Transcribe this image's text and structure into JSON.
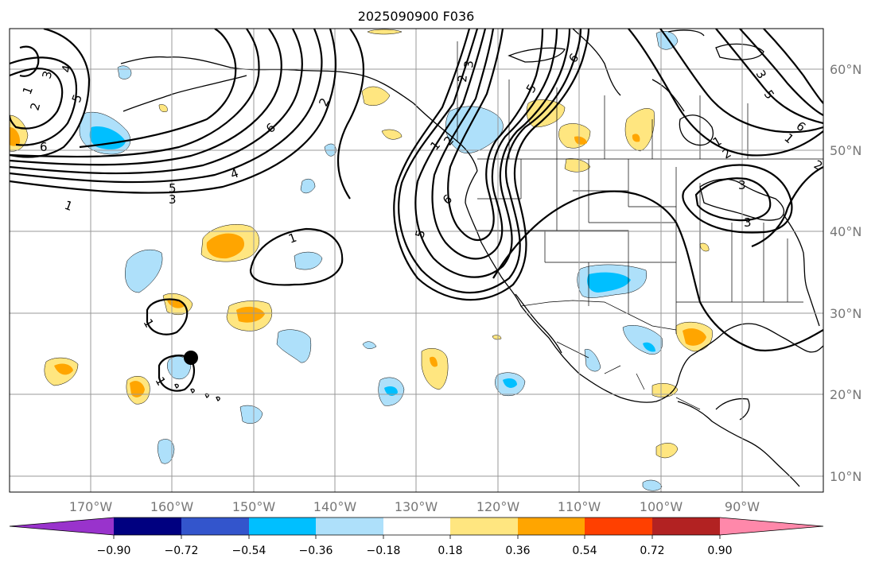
{
  "title": "2025090900 F036",
  "map": {
    "longitude_labels": [
      "170°W",
      "160°W",
      "150°W",
      "140°W",
      "130°W",
      "120°W",
      "110°W",
      "100°W",
      "90°W"
    ],
    "latitude_labels": [
      "60°N",
      "50°N",
      "40°N",
      "30°N",
      "20°N",
      "10°N"
    ],
    "contour_labels": [
      "5",
      "4",
      "3",
      "2",
      "1",
      "6",
      "1",
      "2",
      "4",
      "5",
      "3",
      "6",
      "1",
      "1",
      "1",
      "1",
      "3",
      "2",
      "5",
      "6",
      "6",
      "5",
      "3",
      "2",
      "1",
      "2",
      "3",
      "5",
      "6",
      "1",
      "3",
      "2"
    ],
    "marker": "black-dot"
  },
  "colorbar": {
    "tick_labels": [
      "−0.90",
      "−0.72",
      "−0.54",
      "−0.36",
      "−0.18",
      "0.18",
      "0.36",
      "0.54",
      "0.72",
      "0.90"
    ],
    "colors": [
      "#9933cc",
      "#000080",
      "#3355cc",
      "#00bfff",
      "#aee0fa",
      "#ffffff",
      "#ffe680",
      "#ffa500",
      "#ff4000",
      "#b22222",
      "#ff88aa"
    ]
  }
}
